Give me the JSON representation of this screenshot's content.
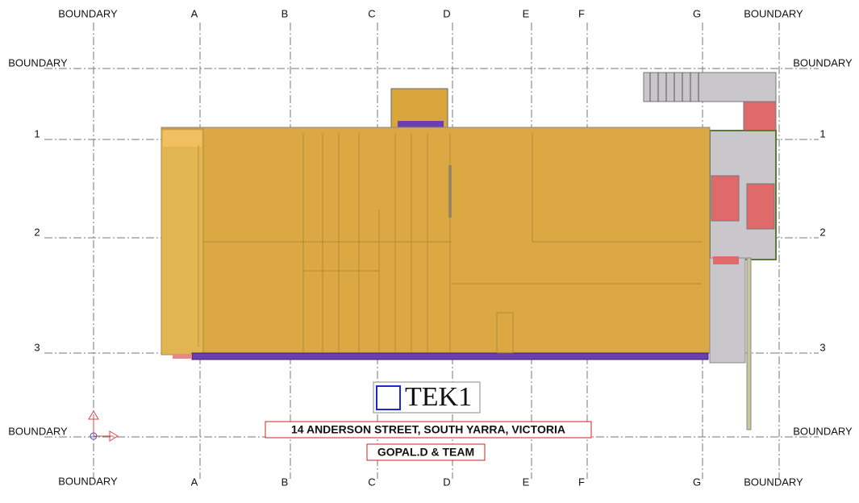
{
  "grid": {
    "boundary": "BOUNDARY",
    "columns": [
      "A",
      "B",
      "C",
      "D",
      "E",
      "F",
      "G"
    ],
    "rows": [
      "1",
      "2",
      "3"
    ]
  },
  "logo": {
    "text": "TEK1"
  },
  "address": "14 ANDERSON STREET, SOUTH YARRA, VICTORIA",
  "team": "GOPAL.D & TEAM"
}
